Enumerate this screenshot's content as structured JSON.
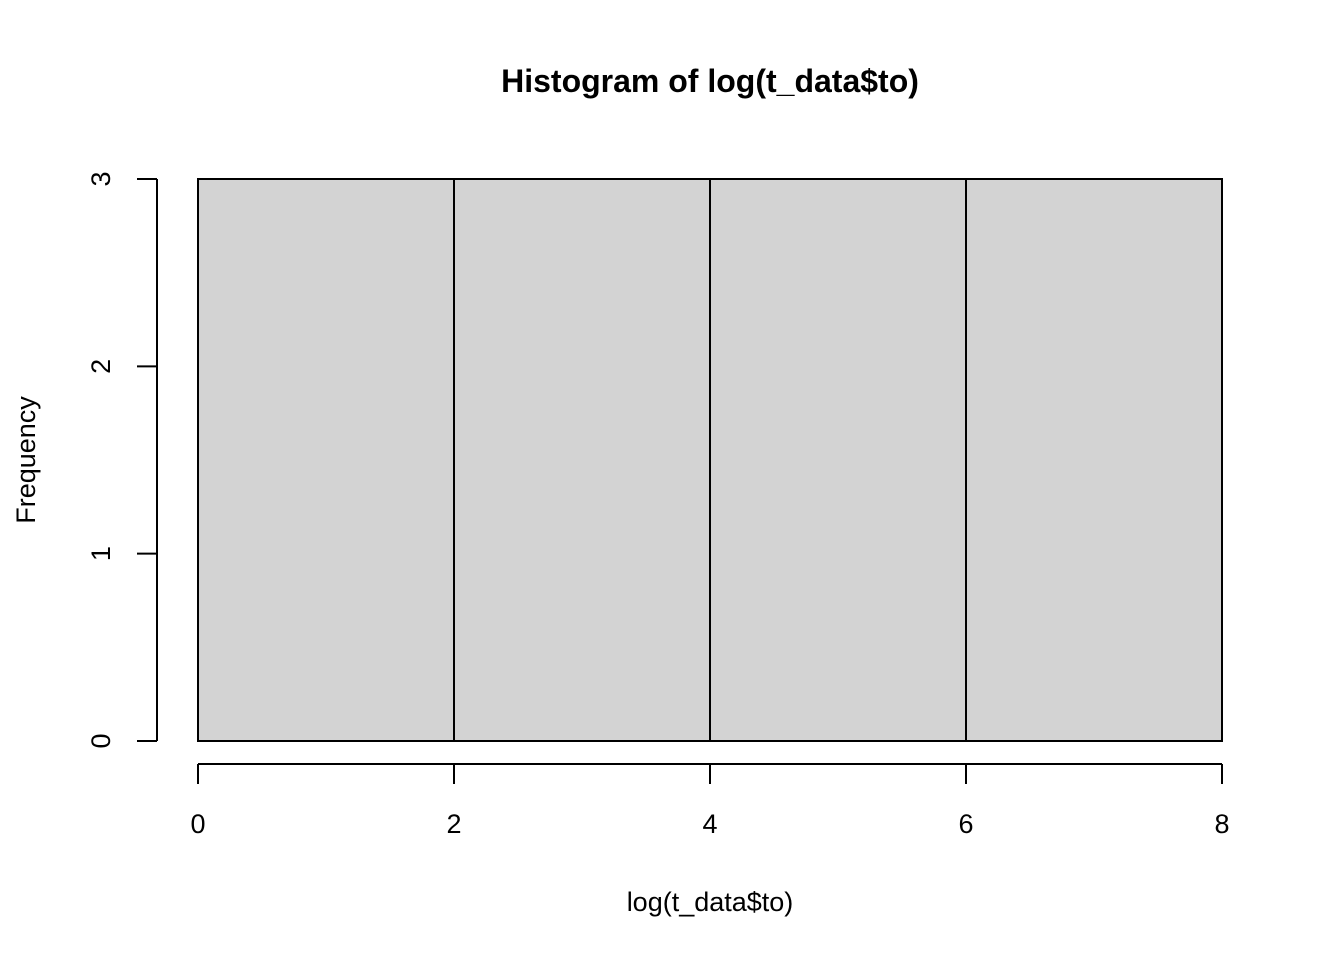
{
  "chart_data": {
    "type": "bar",
    "subtype": "histogram",
    "title": "Histogram of log(t_data$to)",
    "xlabel": "log(t_data$to)",
    "ylabel": "Frequency",
    "bins": [
      {
        "start": 0,
        "end": 2,
        "count": 3
      },
      {
        "start": 2,
        "end": 4,
        "count": 3
      },
      {
        "start": 4,
        "end": 6,
        "count": 3
      },
      {
        "start": 6,
        "end": 8,
        "count": 3
      }
    ],
    "xlim": [
      0,
      8
    ],
    "ylim": [
      0,
      3
    ],
    "xticks": [
      "0",
      "2",
      "4",
      "6",
      "8"
    ],
    "yticks": [
      "0",
      "1",
      "2",
      "3"
    ],
    "bar_fill": "#d3d3d3",
    "bar_stroke": "#000000",
    "grid": false,
    "legend": "none"
  }
}
